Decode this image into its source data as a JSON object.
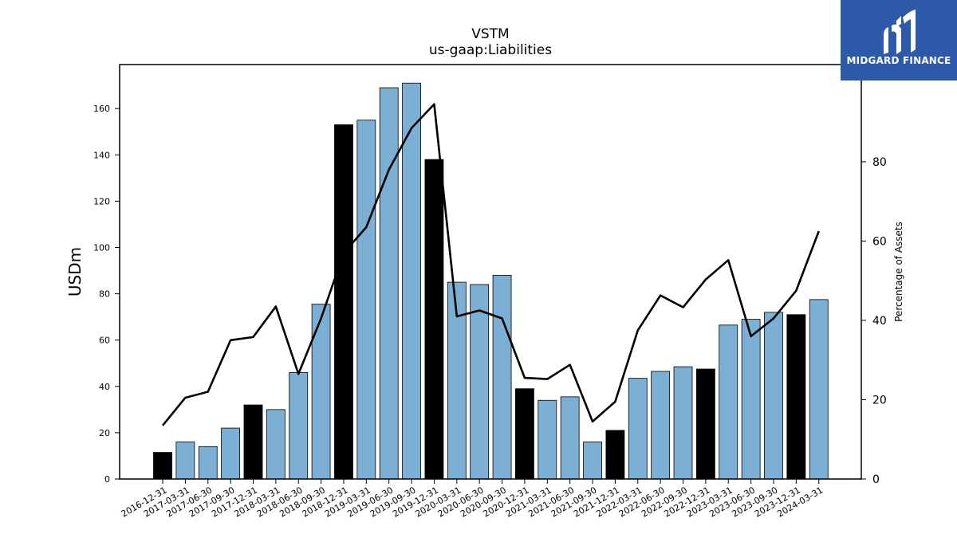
{
  "brand": {
    "name": "MIDGARD FINANCE"
  },
  "chart_data": {
    "type": "bar",
    "title": "VSTM",
    "subtitle": "us-gaap:Liabilities",
    "ylabel": "USDm",
    "y2label": "Percentage of Assets",
    "ylim": [
      0,
      179
    ],
    "y2lim": [
      0,
      104.5
    ],
    "yticks": [
      0,
      20,
      40,
      60,
      80,
      100,
      120,
      140,
      160
    ],
    "y2ticks": [
      0,
      20,
      40,
      60,
      80
    ],
    "categories": [
      "2016-12-31",
      "2017-03-31",
      "2017-06-30",
      "2017-09-30",
      "2017-12-31",
      "2018-03-31",
      "2018-06-30",
      "2018-09-30",
      "2018-12-31",
      "2019-03-31",
      "2019-06-30",
      "2019-09-30",
      "2019-12-31",
      "2020-03-31",
      "2020-06-30",
      "2020-09-30",
      "2020-12-31",
      "2021-03-31",
      "2021-06-30",
      "2021-09-30",
      "2021-12-31",
      "2022-03-31",
      "2022-06-30",
      "2022-09-30",
      "2022-12-31",
      "2023-03-31",
      "2023-06-30",
      "2023-09-30",
      "2023-12-31",
      "2024-03-31"
    ],
    "series": [
      {
        "axis": "left",
        "kind": "bar",
        "values": [
          11.5,
          16,
          14,
          22,
          32,
          30,
          46,
          75.5,
          153,
          155,
          169,
          171,
          138,
          85,
          84,
          88,
          39,
          34,
          35.5,
          16,
          21,
          43.5,
          46.5,
          48.5,
          47.5,
          66.5,
          69,
          72,
          71,
          77.5
        ],
        "colors_by_quarter": {
          "year_end": "#000000",
          "other": "#7bafd4"
        }
      },
      {
        "axis": "right",
        "kind": "line",
        "color": "#000000",
        "values": [
          13.5,
          20.5,
          22,
          35,
          35.8,
          43.5,
          26.5,
          40.5,
          57,
          63.5,
          78,
          88.5,
          94.5,
          41,
          42.5,
          40.5,
          25.5,
          25.2,
          28.8,
          14.5,
          19.5,
          37.5,
          46.3,
          43.3,
          50.3,
          55.2,
          36,
          40.5,
          47.5,
          62.5
        ]
      }
    ],
    "grid": false,
    "legend": "none"
  }
}
